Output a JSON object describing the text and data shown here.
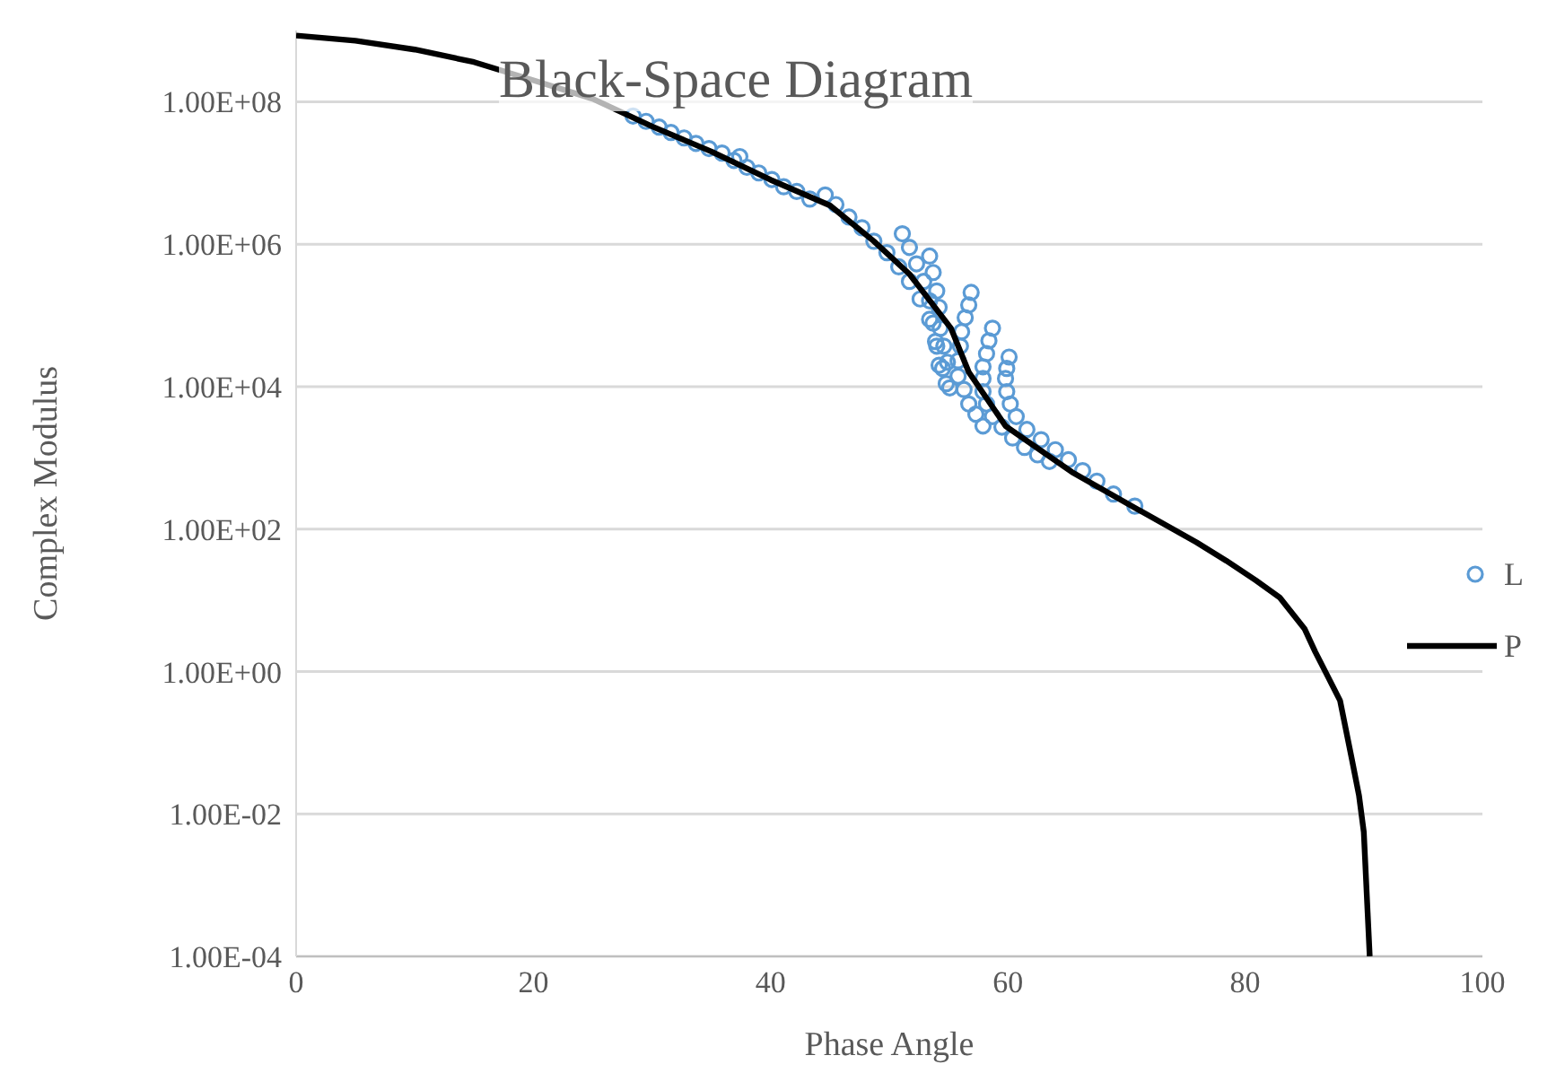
{
  "chart_data": {
    "type": "scatter",
    "title": "Black-Space Diagram",
    "xlabel": "Phase Angle",
    "ylabel": "Complex Modulus",
    "xlim": [
      0,
      100
    ],
    "xticks": [
      0,
      20,
      40,
      60,
      80,
      100
    ],
    "ylim": [
      0.0001,
      1000000000
    ],
    "yticks": [
      {
        "value": 0.0001,
        "label": "1.00E-04"
      },
      {
        "value": 0.01,
        "label": "1.00E-02"
      },
      {
        "value": 1,
        "label": "1.00E+00"
      },
      {
        "value": 100,
        "label": "1.00E+02"
      },
      {
        "value": 10000,
        "label": "1.00E+04"
      },
      {
        "value": 1000000,
        "label": "1.00E+06"
      },
      {
        "value": 100000000,
        "label": "1.00E+08"
      }
    ],
    "log": "y",
    "grid": "y",
    "legend": "right",
    "series": [
      {
        "name": "L",
        "color": "#5b9bd5",
        "marker": "circle",
        "x": [
          28.4,
          29.5,
          30.6,
          31.6,
          32.7,
          33.7,
          34.8,
          35.9,
          36.9,
          37.4,
          38.0,
          39.0,
          40.1,
          41.1,
          42.2,
          43.3,
          44.6,
          45.5,
          46.6,
          47.7,
          48.7,
          49.8,
          50.8,
          51.7,
          52.6,
          53.4,
          53.9,
          54.2,
          54.8,
          51.1,
          51.7,
          52.3,
          52.9,
          53.4,
          53.7,
          54.0,
          54.5,
          55.1,
          53.4,
          53.7,
          54.0,
          54.2,
          54.3,
          54.6,
          54.9,
          56.9,
          56.7,
          56.4,
          56.1,
          56.0,
          55.8,
          55.8,
          56.3,
          56.7,
          57.3,
          57.9,
          58.7,
          58.4,
          58.2,
          57.9,
          57.9,
          57.9,
          58.2,
          58.7,
          59.5,
          60.4,
          61.4,
          62.5,
          63.5,
          60.1,
          59.9,
          59.8,
          59.9,
          60.2,
          60.7,
          61.6,
          62.8,
          64.0,
          65.1,
          66.3,
          67.5,
          68.9,
          70.7
        ],
        "values": [
          63000000,
          53000000,
          44000000,
          37000000,
          31000000,
          26000000,
          22000000,
          19000000,
          15000000,
          17000000,
          12000000,
          10000000,
          8100000,
          6400000,
          5500000,
          4300000,
          4900000,
          3600000,
          2400000,
          1700000,
          1100000,
          760000,
          480000,
          300000,
          170000,
          88000,
          43000,
          20000,
          11000,
          1400000,
          900000,
          530000,
          300000,
          160000,
          78000,
          37000,
          18000,
          9600,
          680000,
          400000,
          220000,
          130000,
          66000,
          37000,
          22000,
          210000,
          140000,
          93000,
          59000,
          37000,
          23000,
          14000,
          9100,
          5700,
          4100,
          2800,
          66000,
          44000,
          29000,
          19000,
          13000,
          8500,
          5700,
          3800,
          2700,
          1900,
          1400,
          1100,
          890,
          26000,
          18000,
          13000,
          8500,
          5700,
          3800,
          2500,
          1800,
          1300,
          940,
          660,
          470,
          310,
          210
        ]
      },
      {
        "name": "P",
        "type": "line",
        "color": "#000000",
        "marker": "none",
        "line_style": "solid",
        "x": [
          0,
          5,
          10,
          15,
          20,
          25,
          30,
          35,
          40,
          45,
          48.7,
          51.7,
          55.2,
          56.7,
          59.8,
          65.4,
          70.8,
          75.9,
          78.4,
          80.9,
          82.9,
          85.0,
          85.9,
          87.0,
          88.0,
          89.0,
          89.6,
          90.0,
          90.5
        ],
        "values": [
          850000000,
          720000000,
          540000000,
          360000000,
          200000000,
          110000000,
          45000000,
          20000000,
          8000000,
          3500000,
          1100000,
          380000,
          66000,
          16000,
          2800,
          630,
          195,
          65,
          36,
          19,
          11,
          4,
          1.9,
          0.83,
          0.39,
          0.058,
          0.018,
          0.0056,
          0.0001
        ]
      }
    ]
  }
}
